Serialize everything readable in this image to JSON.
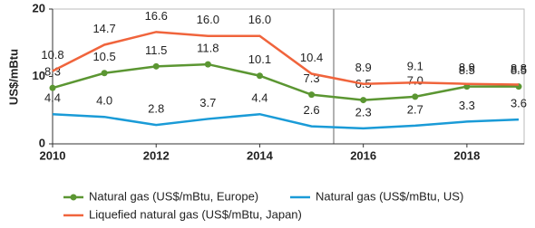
{
  "chart_data": {
    "type": "line",
    "y_label": "US$/mBtu",
    "x": [
      2010,
      2011,
      2012,
      2013,
      2014,
      2015,
      2016,
      2017,
      2018,
      2019
    ],
    "xlim": [
      2010,
      2019
    ],
    "xticks": [
      2010,
      2012,
      2014,
      2016,
      2018
    ],
    "ylim": [
      0,
      20
    ],
    "yticks": [
      0,
      10,
      20
    ],
    "series": [
      {
        "name": "Natural gas (US$/mBtu, Europe)",
        "color": "#5b9632",
        "values": [
          8.3,
          10.5,
          11.5,
          11.8,
          10.1,
          7.3,
          6.5,
          7.0,
          8.5,
          8.5
        ],
        "value_labels": [
          "8.3",
          "10.5",
          "11.5",
          "11.8",
          "10.1",
          "7.3",
          "6.5",
          "7.0",
          "8.5",
          "8.5"
        ]
      },
      {
        "name": "Natural gas (US$/mBtu, US)",
        "color": "#1a9bd7",
        "values": [
          4.4,
          4.0,
          2.8,
          3.7,
          4.4,
          2.6,
          2.3,
          2.7,
          3.3,
          3.6
        ],
        "value_labels": [
          "4.4",
          "4.0",
          "2.8",
          "3.7",
          "4.4",
          "2.6",
          "2.3",
          "2.7",
          "3.3",
          "3.6"
        ]
      },
      {
        "name": "Liquefied natural gas (US$/mBtu, Japan)",
        "color": "#f0643c",
        "values": [
          10.8,
          14.7,
          16.6,
          16.0,
          16.0,
          10.4,
          8.9,
          9.1,
          8.9,
          8.8
        ],
        "value_labels": [
          "10.8",
          "14.7",
          "16.6",
          "16.0",
          "16.0",
          "10.4",
          "8.9",
          "9.1",
          "8.9",
          "8.8"
        ]
      }
    ]
  }
}
